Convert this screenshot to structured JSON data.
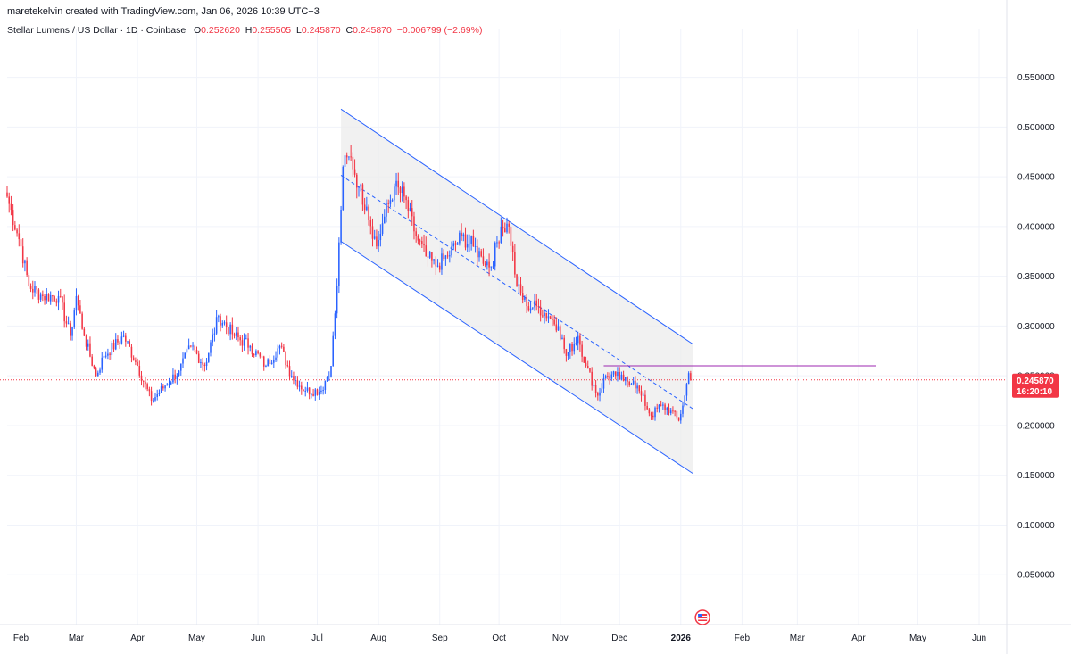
{
  "header": {
    "credit": "maretekelvin created with TradingView.com, Jan 06, 2026 10:39 UTC+3",
    "symbol": "Stellar Lumens / US Dollar · 1D · Coinbase",
    "open_label": "O",
    "open_value": "0.252620",
    "high_label": "H",
    "high_value": "0.255505",
    "low_label": "L",
    "low_value": "0.245870",
    "close_label": "C",
    "close_value": "0.245870",
    "change": "−0.006799 (−2.69%)"
  },
  "colors": {
    "up": "#2962ff",
    "down": "#f23645",
    "channel": "#2962ff",
    "channel_fill": "#ececec",
    "resistance": "#9c27b0",
    "price_line": "#f23645",
    "grid": "#f0f3fa"
  },
  "chart_data": {
    "type": "candlestick",
    "x_axis_labels": [
      "Feb",
      "Mar",
      "Apr",
      "May",
      "Jun",
      "Jul",
      "Aug",
      "Sep",
      "Oct",
      "Nov",
      "Dec",
      "2026",
      "Feb",
      "Mar",
      "Apr",
      "May",
      "Jun"
    ],
    "y_axis_labels": [
      "0.550000",
      "0.500000",
      "0.450000",
      "0.400000",
      "0.350000",
      "0.300000",
      "0.250000",
      "0.200000",
      "0.150000",
      "0.100000",
      "0.050000"
    ],
    "y_ticks": [
      0.55,
      0.5,
      0.45,
      0.4,
      0.35,
      0.3,
      0.25,
      0.2,
      0.15,
      0.1,
      0.05
    ],
    "ylim": [
      0.0,
      0.59
    ],
    "date_range": [
      "2025-01-25",
      "2026-06-15"
    ],
    "last_price": "0.245870",
    "countdown": "16:20:10",
    "last_price_value": 0.24587,
    "close_waypoints": [
      {
        "date": "2025-01-25",
        "close": 0.43
      },
      {
        "date": "2025-02-01",
        "close": 0.38
      },
      {
        "date": "2025-02-05",
        "close": 0.34
      },
      {
        "date": "2025-02-12",
        "close": 0.33
      },
      {
        "date": "2025-02-20",
        "close": 0.33
      },
      {
        "date": "2025-02-26",
        "close": 0.29
      },
      {
        "date": "2025-03-01",
        "close": 0.33
      },
      {
        "date": "2025-03-05",
        "close": 0.29
      },
      {
        "date": "2025-03-11",
        "close": 0.25
      },
      {
        "date": "2025-03-15",
        "close": 0.27
      },
      {
        "date": "2025-03-25",
        "close": 0.29
      },
      {
        "date": "2025-04-01",
        "close": 0.26
      },
      {
        "date": "2025-04-08",
        "close": 0.225
      },
      {
        "date": "2025-04-15",
        "close": 0.24
      },
      {
        "date": "2025-04-22",
        "close": 0.255
      },
      {
        "date": "2025-04-28",
        "close": 0.28
      },
      {
        "date": "2025-05-05",
        "close": 0.26
      },
      {
        "date": "2025-05-12",
        "close": 0.31
      },
      {
        "date": "2025-05-20",
        "close": 0.29
      },
      {
        "date": "2025-05-28",
        "close": 0.28
      },
      {
        "date": "2025-06-05",
        "close": 0.26
      },
      {
        "date": "2025-06-12",
        "close": 0.28
      },
      {
        "date": "2025-06-18",
        "close": 0.25
      },
      {
        "date": "2025-06-25",
        "close": 0.235
      },
      {
        "date": "2025-07-03",
        "close": 0.235
      },
      {
        "date": "2025-07-08",
        "close": 0.26
      },
      {
        "date": "2025-07-11",
        "close": 0.34
      },
      {
        "date": "2025-07-14",
        "close": 0.46
      },
      {
        "date": "2025-07-18",
        "close": 0.47
      },
      {
        "date": "2025-07-22",
        "close": 0.44
      },
      {
        "date": "2025-07-26",
        "close": 0.42
      },
      {
        "date": "2025-07-31",
        "close": 0.38
      },
      {
        "date": "2025-08-04",
        "close": 0.41
      },
      {
        "date": "2025-08-09",
        "close": 0.44
      },
      {
        "date": "2025-08-14",
        "close": 0.43
      },
      {
        "date": "2025-08-20",
        "close": 0.39
      },
      {
        "date": "2025-08-25",
        "close": 0.37
      },
      {
        "date": "2025-08-30",
        "close": 0.36
      },
      {
        "date": "2025-09-05",
        "close": 0.37
      },
      {
        "date": "2025-09-12",
        "close": 0.39
      },
      {
        "date": "2025-09-18",
        "close": 0.38
      },
      {
        "date": "2025-09-22",
        "close": 0.37
      },
      {
        "date": "2025-09-27",
        "close": 0.36
      },
      {
        "date": "2025-10-02",
        "close": 0.4
      },
      {
        "date": "2025-10-06",
        "close": 0.4
      },
      {
        "date": "2025-10-10",
        "close": 0.34
      },
      {
        "date": "2025-10-15",
        "close": 0.32
      },
      {
        "date": "2025-10-20",
        "close": 0.32
      },
      {
        "date": "2025-10-26",
        "close": 0.31
      },
      {
        "date": "2025-10-31",
        "close": 0.3
      },
      {
        "date": "2025-11-04",
        "close": 0.27
      },
      {
        "date": "2025-11-10",
        "close": 0.29
      },
      {
        "date": "2025-11-14",
        "close": 0.26
      },
      {
        "date": "2025-11-20",
        "close": 0.23
      },
      {
        "date": "2025-11-24",
        "close": 0.25
      },
      {
        "date": "2025-11-29",
        "close": 0.25
      },
      {
        "date": "2025-12-03",
        "close": 0.245
      },
      {
        "date": "2025-12-08",
        "close": 0.245
      },
      {
        "date": "2025-12-12",
        "close": 0.23
      },
      {
        "date": "2025-12-17",
        "close": 0.21
      },
      {
        "date": "2025-12-22",
        "close": 0.22
      },
      {
        "date": "2025-12-27",
        "close": 0.215
      },
      {
        "date": "2025-12-31",
        "close": 0.205
      },
      {
        "date": "2026-01-03",
        "close": 0.23
      },
      {
        "date": "2026-01-05",
        "close": 0.2527
      },
      {
        "date": "2026-01-06",
        "close": 0.24587
      }
    ],
    "channel": {
      "upper": [
        {
          "date": "2025-07-13",
          "price": 0.518
        },
        {
          "date": "2026-01-07",
          "price": 0.282
        }
      ],
      "lower": [
        {
          "date": "2025-07-13",
          "price": 0.385
        },
        {
          "date": "2026-01-07",
          "price": 0.152
        }
      ],
      "mid": [
        {
          "date": "2025-07-13",
          "price": 0.4515
        },
        {
          "date": "2026-01-07",
          "price": 0.217
        }
      ]
    },
    "resistance_line": {
      "price": 0.26,
      "from": "2025-11-23",
      "to": "2026-04-10"
    }
  }
}
